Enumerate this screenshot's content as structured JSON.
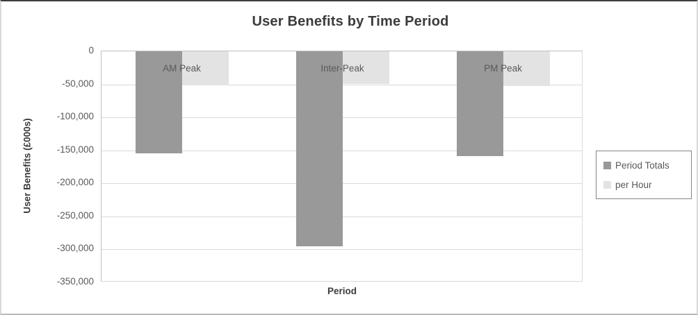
{
  "chart_data": {
    "type": "bar",
    "title": "User Benefits by Time Period",
    "xlabel": "Period",
    "ylabel": "User Benefits (£000s)",
    "categories": [
      "AM Peak",
      "Inter-Peak",
      "PM Peak"
    ],
    "series": [
      {
        "name": "Period Totals",
        "color": "#999999",
        "values": [
          -155000,
          -295000,
          -159000
        ]
      },
      {
        "name": "per Hour",
        "color": "#e3e3e3",
        "values": [
          -51000,
          -49000,
          -53000
        ]
      }
    ],
    "ylim": [
      0,
      -350000
    ],
    "ytick_step": 50000,
    "yticks": [
      "0",
      "-50,000",
      "-100,000",
      "-150,000",
      "-200,000",
      "-250,000",
      "-300,000",
      "-350,000"
    ],
    "grid": true,
    "legend_position": "right",
    "colors": {
      "title_text": "#3b3b3b",
      "axis_text": "#595959",
      "gridline": "#d9d9d9",
      "axis_line": "#bfbfbf"
    }
  }
}
